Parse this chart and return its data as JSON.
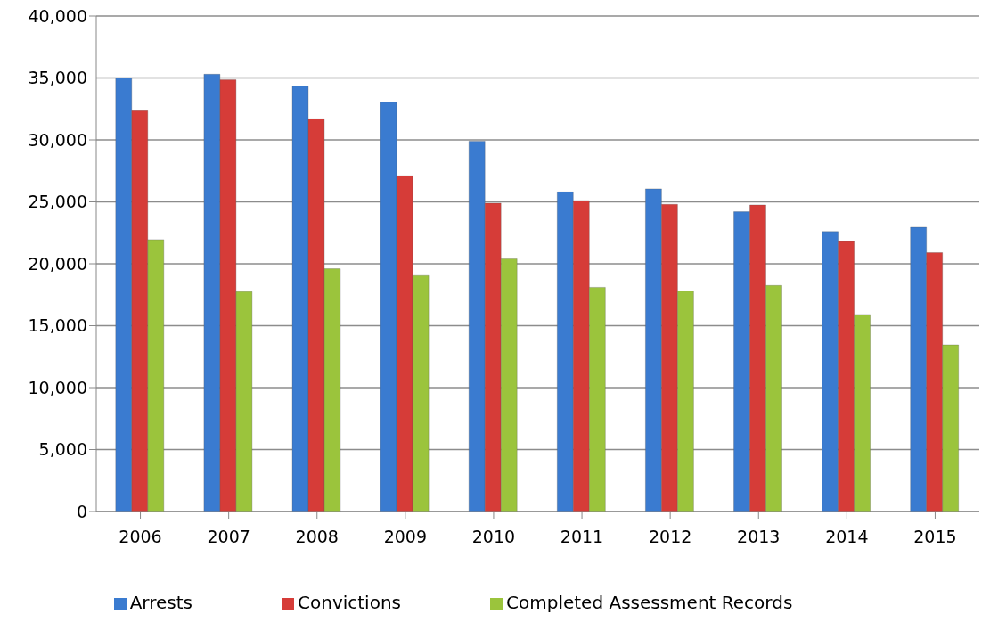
{
  "chart_data": {
    "type": "bar",
    "categories": [
      "2006",
      "2007",
      "2008",
      "2009",
      "2010",
      "2011",
      "2012",
      "2013",
      "2014",
      "2015"
    ],
    "series": [
      {
        "name": "Arrests",
        "color": "#3a7bd0",
        "values": [
          35000,
          35300,
          34350,
          33050,
          29900,
          25800,
          26050,
          24200,
          22600,
          22950
        ]
      },
      {
        "name": "Convictions",
        "color": "#d63c38",
        "values": [
          32350,
          34850,
          31700,
          27100,
          24900,
          25100,
          24800,
          24750,
          21800,
          20900
        ]
      },
      {
        "name": "Completed Assessment Records",
        "color": "#9bc43c",
        "values": [
          21950,
          17750,
          19600,
          19050,
          20400,
          18100,
          17800,
          18250,
          15900,
          13450
        ]
      }
    ],
    "ylim": [
      0,
      40000
    ],
    "yticks": [
      0,
      {
        "value": 5000,
        "label": "5,000"
      },
      {
        "value": 10000,
        "label": "10,000"
      },
      {
        "value": 15000,
        "label": "15,000"
      },
      {
        "value": 20000,
        "label": "20,000"
      },
      {
        "value": 25000,
        "label": "25,000"
      },
      {
        "value": 30000,
        "label": "30,000"
      },
      {
        "value": 35000,
        "label": "35,000"
      },
      {
        "value": 40000,
        "label": "40,000"
      }
    ],
    "grid": "y",
    "legend": "bottom"
  }
}
